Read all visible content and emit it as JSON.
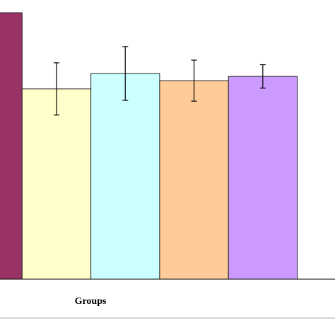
{
  "chart_data": {
    "type": "bar",
    "xlabel": "Groups",
    "categories": [
      null,
      null,
      null,
      null,
      null
    ],
    "series": [
      {
        "values": [
          100,
          71.4,
          77.2,
          74.5,
          76.1
        ],
        "errors": [
          null,
          9.8,
          10.1,
          7.7,
          4.4
        ],
        "colors": [
          "#993366",
          "#ffffcc",
          "#ccffff",
          "#ffcc99",
          "#cc99ff"
        ]
      }
    ],
    "ylim": [
      0,
      100
    ]
  }
}
